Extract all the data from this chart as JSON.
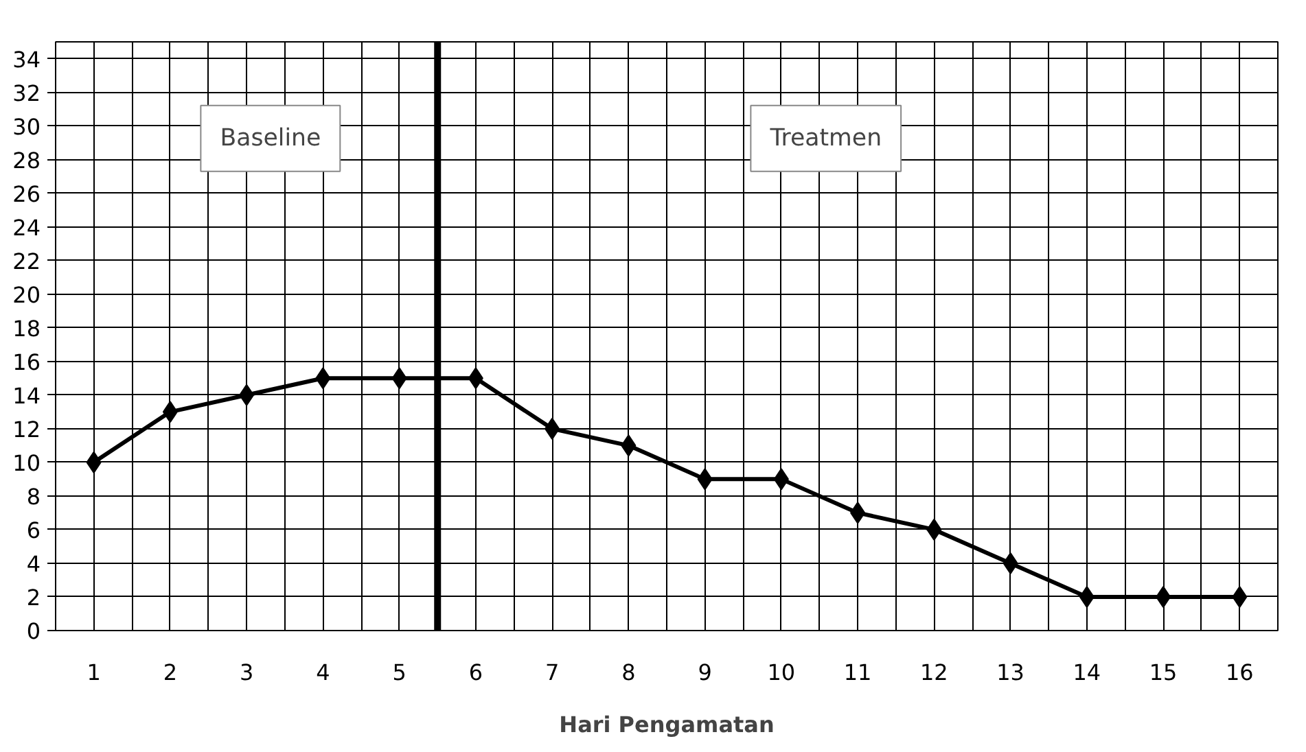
{
  "chart_data": {
    "type": "line",
    "xlabel": "Hari Pengamatan",
    "x": [
      1,
      2,
      3,
      4,
      5,
      6,
      7,
      8,
      9,
      10,
      11,
      12,
      13,
      14,
      15,
      16
    ],
    "xlim": [
      0.5,
      16.5
    ],
    "xticks": [
      1,
      2,
      3,
      4,
      5,
      6,
      7,
      8,
      9,
      10,
      11,
      12,
      13,
      14,
      15,
      16
    ],
    "series": [
      {
        "color": "#000000",
        "values": [
          10,
          13,
          14,
          15,
          15,
          15,
          12,
          11,
          9,
          9,
          7,
          6,
          4,
          2,
          2,
          2
        ]
      }
    ],
    "ylim": [
      0,
      35
    ],
    "yticks": [
      0,
      2,
      4,
      6,
      8,
      10,
      12,
      14,
      16,
      18,
      20,
      22,
      24,
      26,
      28,
      30,
      32,
      34
    ],
    "ref_lines": [
      {
        "axis": "x",
        "value": 5.5,
        "color": "#000000"
      }
    ],
    "annotations": [
      "Baseline",
      "Treatmen"
    ],
    "grid": true,
    "marker": "diamond",
    "line_style": "solid"
  }
}
